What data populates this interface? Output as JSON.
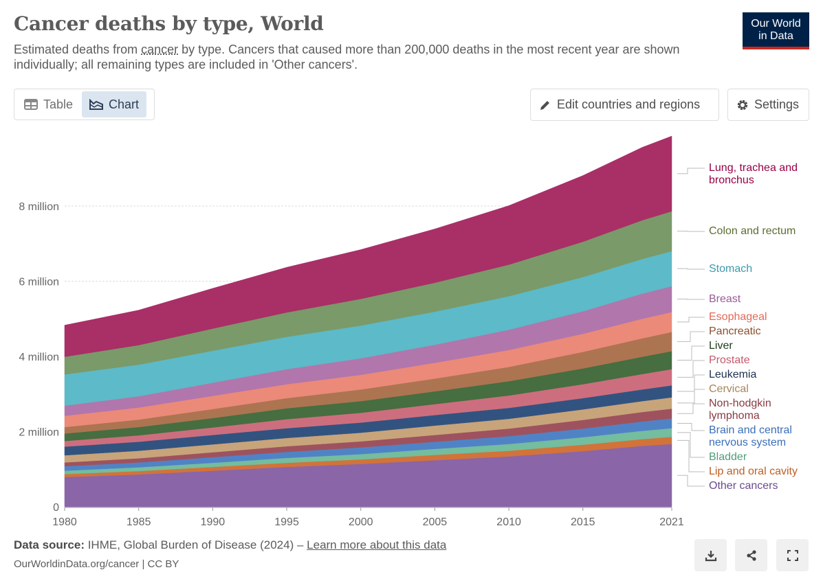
{
  "header": {
    "title": "Cancer deaths by type, World",
    "subtitle_pre": "Estimated deaths from ",
    "subtitle_link": "cancer",
    "subtitle_post": " by type. Cancers that caused more than 200,000 deaths in the most recent year are shown individually; all remaining types are included in 'Other cancers'.",
    "logo_line1": "Our World",
    "logo_line2": "in Data"
  },
  "controls": {
    "tab_table": "Table",
    "tab_chart": "Chart",
    "active_tab": "Chart",
    "edit_label": "Edit countries and regions",
    "settings_label": "Settings"
  },
  "footer": {
    "source_label": "Data source:",
    "source_text": " IHME, Global Burden of Disease (2024) – ",
    "source_link": "Learn more about this data",
    "url": "OurWorldinData.org/cancer | CC BY",
    "icons": [
      "download-icon",
      "share-icon",
      "fullscreen-icon"
    ]
  },
  "chart_data": {
    "type": "area",
    "stacked": true,
    "title": "Cancer deaths by type, World",
    "x": [
      1980,
      1985,
      1990,
      1995,
      2000,
      2005,
      2010,
      2015,
      2019,
      2021
    ],
    "xlim": [
      1980,
      2021
    ],
    "ylim": [
      0,
      10000000
    ],
    "y_ticks": [
      {
        "value": 0,
        "label": "0"
      },
      {
        "value": 2000000,
        "label": "2 million"
      },
      {
        "value": 4000000,
        "label": "4 million"
      },
      {
        "value": 6000000,
        "label": "6 million"
      },
      {
        "value": 8000000,
        "label": "8 million"
      }
    ],
    "x_ticks": [
      {
        "value": 1980,
        "label": "1980"
      },
      {
        "value": 1985,
        "label": "1985"
      },
      {
        "value": 1990,
        "label": "1990"
      },
      {
        "value": 1995,
        "label": "1995"
      },
      {
        "value": 2000,
        "label": "2000"
      },
      {
        "value": 2005,
        "label": "2005"
      },
      {
        "value": 2010,
        "label": "2010"
      },
      {
        "value": 2015,
        "label": "2015"
      },
      {
        "value": 2021,
        "label": "2021"
      }
    ],
    "grid": "horizontal-dashed",
    "legend_placement": "right",
    "unit": "million deaths",
    "series": [
      {
        "name": "Other cancers",
        "color": "#8a65a7",
        "label_color": "#6b4a8c",
        "values": [
          0.79,
          0.86,
          0.96,
          1.06,
          1.14,
          1.24,
          1.34,
          1.48,
          1.62,
          1.67
        ]
      },
      {
        "name": "Lip and oral cavity",
        "color": "#d2733a",
        "label_color": "#c05e22",
        "values": [
          0.08,
          0.09,
          0.1,
          0.11,
          0.12,
          0.14,
          0.15,
          0.17,
          0.18,
          0.19
        ]
      },
      {
        "name": "Bladder",
        "color": "#74bd9e",
        "label_color": "#4e9d79",
        "values": [
          0.09,
          0.1,
          0.11,
          0.13,
          0.14,
          0.16,
          0.18,
          0.2,
          0.22,
          0.23
        ]
      },
      {
        "name": "Brain and central nervous system",
        "color": "#5083c6",
        "label_color": "#3a6fb8",
        "values": [
          0.12,
          0.13,
          0.15,
          0.16,
          0.18,
          0.19,
          0.21,
          0.23,
          0.25,
          0.26
        ]
      },
      {
        "name": "Non-hodgkin lymphoma",
        "color": "#9e525e",
        "label_color": "#8a3a44",
        "values": [
          0.1,
          0.11,
          0.13,
          0.15,
          0.16,
          0.18,
          0.2,
          0.23,
          0.25,
          0.26
        ]
      },
      {
        "name": "Cervical",
        "color": "#c8a47a",
        "label_color": "#a8845a",
        "values": [
          0.19,
          0.2,
          0.21,
          0.22,
          0.23,
          0.25,
          0.26,
          0.28,
          0.29,
          0.3
        ]
      },
      {
        "name": "Leukemia",
        "color": "#325380",
        "label_color": "#1e3050",
        "values": [
          0.23,
          0.24,
          0.25,
          0.26,
          0.27,
          0.28,
          0.29,
          0.3,
          0.31,
          0.32
        ]
      },
      {
        "name": "Prostate",
        "color": "#cd6e7e",
        "label_color": "#c25a6c",
        "values": [
          0.15,
          0.17,
          0.2,
          0.24,
          0.26,
          0.29,
          0.33,
          0.37,
          0.41,
          0.43
        ]
      },
      {
        "name": "Liver",
        "color": "#466e40",
        "label_color": "#1e3a1a",
        "values": [
          0.2,
          0.22,
          0.25,
          0.29,
          0.31,
          0.34,
          0.38,
          0.42,
          0.46,
          0.48
        ]
      },
      {
        "name": "Pancreatic",
        "color": "#ad7451",
        "label_color": "#8a4e2c",
        "values": [
          0.17,
          0.2,
          0.24,
          0.27,
          0.31,
          0.34,
          0.38,
          0.44,
          0.49,
          0.51
        ]
      },
      {
        "name": "Esophageal",
        "color": "#eb8a79",
        "label_color": "#e06a58",
        "values": [
          0.3,
          0.32,
          0.35,
          0.37,
          0.39,
          0.42,
          0.45,
          0.48,
          0.52,
          0.53
        ]
      },
      {
        "name": "Breast",
        "color": "#b176ac",
        "label_color": "#9a5a96",
        "values": [
          0.27,
          0.3,
          0.35,
          0.4,
          0.44,
          0.48,
          0.54,
          0.6,
          0.67,
          0.69
        ]
      },
      {
        "name": "Stomach",
        "color": "#5dbac8",
        "label_color": "#3c9aaa",
        "values": [
          0.83,
          0.84,
          0.85,
          0.86,
          0.87,
          0.88,
          0.89,
          0.91,
          0.92,
          0.93
        ]
      },
      {
        "name": "Colon and rectum",
        "color": "#7a9a69",
        "label_color": "#5a6e30",
        "values": [
          0.47,
          0.52,
          0.59,
          0.65,
          0.71,
          0.77,
          0.84,
          0.94,
          1.03,
          1.06
        ]
      },
      {
        "name": "Lung, trachea and bronchus",
        "color": "#a92f67",
        "label_color": "#970046",
        "values": [
          0.84,
          0.93,
          1.07,
          1.2,
          1.31,
          1.43,
          1.57,
          1.76,
          1.94,
          2.0
        ]
      }
    ]
  }
}
